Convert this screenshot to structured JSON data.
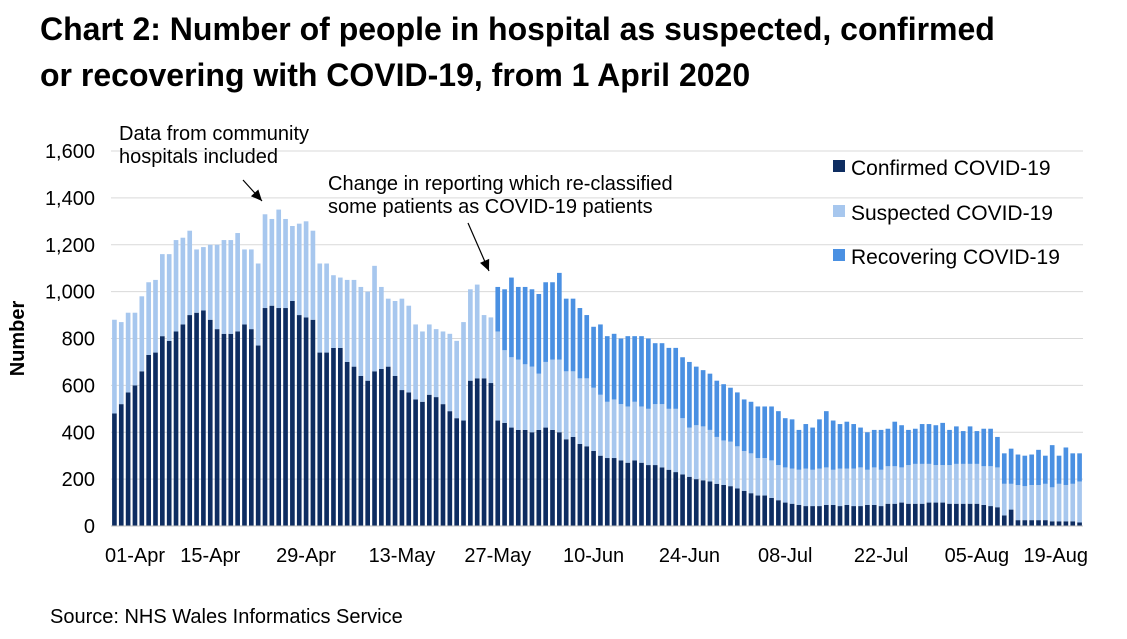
{
  "title_line1": "Chart 2: Number of people in hospital as suspected, confirmed",
  "title_line2": "or recovering with COVID-19, from 1 April 2020",
  "source": "Source: NHS Wales Informatics Service",
  "colors": {
    "confirmed": "#0e2d61",
    "suspected": "#a7c7ee",
    "recovering": "#4a90e2",
    "grid": "#d9d9d9",
    "axis": "#bfbfbf"
  },
  "chart_data": {
    "type": "bar",
    "stacked": true,
    "title": "Chart 2: Number of people in hospital as suspected, confirmed or recovering with COVID-19, from 1 April 2020",
    "xlabel": "",
    "ylabel": "Number",
    "ylim": [
      0,
      1600
    ],
    "yticks": [
      0,
      200,
      400,
      600,
      800,
      1000,
      1200,
      1400,
      1600
    ],
    "ytick_labels": [
      "0",
      "200",
      "400",
      "600",
      "800",
      "1,000",
      "1,200",
      "1,400",
      "1,600"
    ],
    "xtick_labels": [
      "01-Apr",
      "15-Apr",
      "29-Apr",
      "13-May",
      "27-May",
      "10-Jun",
      "24-Jun",
      "08-Jul",
      "22-Jul",
      "05-Aug",
      "19-Aug"
    ],
    "legend_position": "top-right",
    "grid": "horizontal",
    "series": [
      {
        "name": "Confirmed COVID-19",
        "color": "#0e2d61",
        "values": [
          480,
          520,
          570,
          600,
          660,
          730,
          740,
          810,
          790,
          830,
          860,
          900,
          910,
          920,
          880,
          840,
          820,
          820,
          830,
          860,
          840,
          770,
          930,
          940,
          930,
          930,
          960,
          900,
          890,
          880,
          740,
          740,
          760,
          760,
          700,
          680,
          640,
          620,
          660,
          670,
          680,
          640,
          580,
          570,
          540,
          530,
          560,
          550,
          520,
          490,
          460,
          450,
          620,
          630,
          630,
          610,
          450,
          440,
          420,
          410,
          410,
          400,
          410,
          420,
          410,
          400,
          370,
          380,
          350,
          340,
          320,
          300,
          290,
          290,
          280,
          270,
          280,
          270,
          260,
          260,
          250,
          240,
          230,
          220,
          210,
          200,
          195,
          190,
          180,
          175,
          170,
          160,
          150,
          140,
          130,
          130,
          120,
          110,
          100,
          95,
          90,
          85,
          85,
          85,
          90,
          90,
          85,
          90,
          85,
          85,
          90,
          90,
          85,
          95,
          95,
          100,
          95,
          95,
          95,
          100,
          100,
          100,
          95,
          95,
          95,
          95,
          95,
          90,
          85,
          80,
          45,
          70,
          25,
          25,
          25,
          25,
          25,
          20,
          20,
          20,
          20,
          15
        ],
        "label": "Confirmed COVID-19"
      },
      {
        "name": "Suspected COVID-19",
        "color": "#a7c7ee",
        "values": [
          400,
          350,
          340,
          310,
          320,
          310,
          310,
          350,
          370,
          390,
          370,
          360,
          270,
          270,
          320,
          360,
          400,
          400,
          420,
          320,
          340,
          350,
          400,
          370,
          420,
          380,
          320,
          390,
          410,
          380,
          380,
          380,
          310,
          300,
          350,
          370,
          380,
          380,
          450,
          350,
          290,
          320,
          390,
          370,
          320,
          300,
          300,
          290,
          310,
          330,
          330,
          420,
          390,
          400,
          270,
          280,
          380,
          310,
          300,
          300,
          280,
          280,
          240,
          280,
          300,
          310,
          290,
          280,
          280,
          290,
          270,
          260,
          240,
          250,
          240,
          240,
          250,
          240,
          240,
          260,
          270,
          260,
          270,
          240,
          210,
          230,
          230,
          220,
          200,
          190,
          190,
          180,
          170,
          170,
          160,
          160,
          160,
          150,
          150,
          150,
          150,
          160,
          155,
          160,
          160,
          150,
          160,
          155,
          160,
          165,
          150,
          160,
          155,
          160,
          160,
          150,
          165,
          170,
          170,
          165,
          160,
          160,
          165,
          170,
          170,
          170,
          170,
          165,
          170,
          170,
          135,
          110,
          150,
          145,
          150,
          150,
          155,
          145,
          160,
          155,
          160,
          175
        ],
        "label": "Suspected COVID-19"
      },
      {
        "name": "Recovering COVID-19",
        "color": "#4a90e2",
        "values": [
          0,
          0,
          0,
          0,
          0,
          0,
          0,
          0,
          0,
          0,
          0,
          0,
          0,
          0,
          0,
          0,
          0,
          0,
          0,
          0,
          0,
          0,
          0,
          0,
          0,
          0,
          0,
          0,
          0,
          0,
          0,
          0,
          0,
          0,
          0,
          0,
          0,
          0,
          0,
          0,
          0,
          0,
          0,
          0,
          0,
          0,
          0,
          0,
          0,
          0,
          0,
          0,
          0,
          0,
          0,
          0,
          190,
          260,
          340,
          310,
          330,
          330,
          340,
          340,
          330,
          370,
          310,
          310,
          300,
          270,
          260,
          300,
          280,
          280,
          280,
          300,
          280,
          300,
          300,
          260,
          260,
          260,
          260,
          260,
          280,
          250,
          240,
          240,
          240,
          240,
          230,
          230,
          220,
          220,
          220,
          220,
          230,
          230,
          210,
          210,
          170,
          190,
          180,
          210,
          240,
          210,
          190,
          200,
          190,
          170,
          160,
          160,
          170,
          160,
          190,
          180,
          150,
          150,
          170,
          170,
          170,
          180,
          150,
          160,
          140,
          160,
          140,
          160,
          160,
          130,
          130,
          150,
          130,
          130,
          130,
          150,
          120,
          180,
          120,
          160,
          130,
          120
        ],
        "label": "Recovering COVID-19"
      }
    ],
    "annotations": [
      {
        "text_line1": "Data from community",
        "text_line2": "hospitals included"
      },
      {
        "text_line1": "Change in reporting which re-classified",
        "text_line2": "some patients as COVID-19 patients"
      }
    ]
  }
}
